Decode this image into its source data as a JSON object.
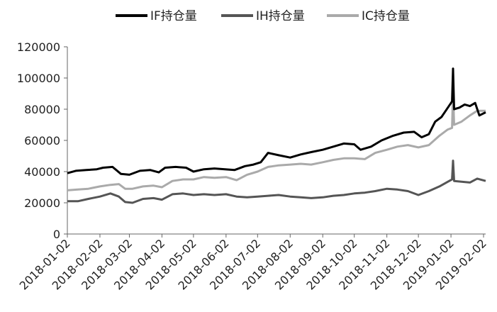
{
  "chart_data": {
    "type": "line",
    "title": "",
    "xlabel": "",
    "ylabel": "",
    "ylim": [
      0,
      120000
    ],
    "yticks": [
      0,
      20000,
      40000,
      60000,
      80000,
      100000,
      120000
    ],
    "ytick_labels": [
      "0",
      "20000",
      "40000",
      "60000",
      "80000",
      "100000",
      "120000"
    ],
    "xlim": [
      "2018-01-02",
      "2019-02-04"
    ],
    "xticks": [
      "2018-01-02",
      "2018-02-02",
      "2018-03-02",
      "2018-04-02",
      "2018-05-02",
      "2018-06-02",
      "2018-07-02",
      "2018-08-02",
      "2018-09-02",
      "2018-10-02",
      "2018-11-02",
      "2018-12-02",
      "2019-01-02",
      "2019-02-02"
    ],
    "grid": false,
    "legend_position": "top",
    "series": [
      {
        "name": "IF持仓量",
        "color": "#000000",
        "points": [
          [
            "2018-01-02",
            39000
          ],
          [
            "2018-01-10",
            40500
          ],
          [
            "2018-01-20",
            41000
          ],
          [
            "2018-01-30",
            41500
          ],
          [
            "2018-02-05",
            42500
          ],
          [
            "2018-02-14",
            43000
          ],
          [
            "2018-02-22",
            38500
          ],
          [
            "2018-03-02",
            38000
          ],
          [
            "2018-03-12",
            40500
          ],
          [
            "2018-03-22",
            41000
          ],
          [
            "2018-03-30",
            39500
          ],
          [
            "2018-04-05",
            42500
          ],
          [
            "2018-04-15",
            43000
          ],
          [
            "2018-04-25",
            42500
          ],
          [
            "2018-05-02",
            40000
          ],
          [
            "2018-05-12",
            41500
          ],
          [
            "2018-05-22",
            42000
          ],
          [
            "2018-06-01",
            41500
          ],
          [
            "2018-06-10",
            41000
          ],
          [
            "2018-06-20",
            43500
          ],
          [
            "2018-06-28",
            44500
          ],
          [
            "2018-07-05",
            46000
          ],
          [
            "2018-07-12",
            52000
          ],
          [
            "2018-07-22",
            50500
          ],
          [
            "2018-08-02",
            49000
          ],
          [
            "2018-08-12",
            51000
          ],
          [
            "2018-08-22",
            52500
          ],
          [
            "2018-09-02",
            54000
          ],
          [
            "2018-09-12",
            56000
          ],
          [
            "2018-09-22",
            58000
          ],
          [
            "2018-10-02",
            57500
          ],
          [
            "2018-10-08",
            54000
          ],
          [
            "2018-10-18",
            56000
          ],
          [
            "2018-10-28",
            60000
          ],
          [
            "2018-11-08",
            63000
          ],
          [
            "2018-11-18",
            65000
          ],
          [
            "2018-11-28",
            65500
          ],
          [
            "2018-12-05",
            62000
          ],
          [
            "2018-12-12",
            64000
          ],
          [
            "2018-12-18",
            72000
          ],
          [
            "2018-12-24",
            75000
          ],
          [
            "2018-12-28",
            79000
          ],
          [
            "2019-01-03",
            85000
          ],
          [
            "2019-01-04",
            106000
          ],
          [
            "2019-01-05",
            80000
          ],
          [
            "2019-01-10",
            81000
          ],
          [
            "2019-01-15",
            83000
          ],
          [
            "2019-01-20",
            82000
          ],
          [
            "2019-01-25",
            84000
          ],
          [
            "2019-01-29",
            76000
          ],
          [
            "2019-02-04",
            78000
          ]
        ]
      },
      {
        "name": "IH持仓量",
        "color": "#555555",
        "points": [
          [
            "2018-01-02",
            21000
          ],
          [
            "2018-01-12",
            21000
          ],
          [
            "2018-01-22",
            22500
          ],
          [
            "2018-02-02",
            24000
          ],
          [
            "2018-02-12",
            26000
          ],
          [
            "2018-02-20",
            24000
          ],
          [
            "2018-02-26",
            20500
          ],
          [
            "2018-03-05",
            20000
          ],
          [
            "2018-03-15",
            22500
          ],
          [
            "2018-03-25",
            23000
          ],
          [
            "2018-04-02",
            22000
          ],
          [
            "2018-04-12",
            25500
          ],
          [
            "2018-04-22",
            26000
          ],
          [
            "2018-05-02",
            25000
          ],
          [
            "2018-05-12",
            25500
          ],
          [
            "2018-05-22",
            25000
          ],
          [
            "2018-06-02",
            25500
          ],
          [
            "2018-06-12",
            24000
          ],
          [
            "2018-06-22",
            23500
          ],
          [
            "2018-07-02",
            24000
          ],
          [
            "2018-07-12",
            24500
          ],
          [
            "2018-07-22",
            25000
          ],
          [
            "2018-08-02",
            24000
          ],
          [
            "2018-08-12",
            23500
          ],
          [
            "2018-08-22",
            23000
          ],
          [
            "2018-09-02",
            23500
          ],
          [
            "2018-09-12",
            24500
          ],
          [
            "2018-09-22",
            25000
          ],
          [
            "2018-10-02",
            26000
          ],
          [
            "2018-10-12",
            26500
          ],
          [
            "2018-10-22",
            27500
          ],
          [
            "2018-11-02",
            29000
          ],
          [
            "2018-11-12",
            28500
          ],
          [
            "2018-11-22",
            27500
          ],
          [
            "2018-12-02",
            25000
          ],
          [
            "2018-12-12",
            27500
          ],
          [
            "2018-12-22",
            30500
          ],
          [
            "2018-12-30",
            33500
          ],
          [
            "2019-01-03",
            35000
          ],
          [
            "2019-01-04",
            47000
          ],
          [
            "2019-01-05",
            34000
          ],
          [
            "2019-01-12",
            33500
          ],
          [
            "2019-01-20",
            33000
          ],
          [
            "2019-01-27",
            35500
          ],
          [
            "2019-02-04",
            34000
          ]
        ]
      },
      {
        "name": "IC持仓量",
        "color": "#aaaaaa",
        "points": [
          [
            "2018-01-02",
            28000
          ],
          [
            "2018-01-12",
            28500
          ],
          [
            "2018-01-22",
            29000
          ],
          [
            "2018-02-02",
            30500
          ],
          [
            "2018-02-12",
            31500
          ],
          [
            "2018-02-20",
            32000
          ],
          [
            "2018-02-26",
            29000
          ],
          [
            "2018-03-05",
            29000
          ],
          [
            "2018-03-15",
            30500
          ],
          [
            "2018-03-25",
            31000
          ],
          [
            "2018-04-02",
            30000
          ],
          [
            "2018-04-12",
            34000
          ],
          [
            "2018-04-22",
            35000
          ],
          [
            "2018-05-02",
            35000
          ],
          [
            "2018-05-12",
            36500
          ],
          [
            "2018-05-22",
            36000
          ],
          [
            "2018-06-02",
            36500
          ],
          [
            "2018-06-12",
            34500
          ],
          [
            "2018-06-22",
            38000
          ],
          [
            "2018-07-02",
            40000
          ],
          [
            "2018-07-12",
            43000
          ],
          [
            "2018-07-22",
            44000
          ],
          [
            "2018-08-02",
            44500
          ],
          [
            "2018-08-12",
            45000
          ],
          [
            "2018-08-22",
            44500
          ],
          [
            "2018-09-02",
            46000
          ],
          [
            "2018-09-12",
            47500
          ],
          [
            "2018-09-22",
            48500
          ],
          [
            "2018-10-02",
            48500
          ],
          [
            "2018-10-12",
            48000
          ],
          [
            "2018-10-22",
            52000
          ],
          [
            "2018-11-02",
            54000
          ],
          [
            "2018-11-12",
            56000
          ],
          [
            "2018-11-22",
            57000
          ],
          [
            "2018-12-02",
            55500
          ],
          [
            "2018-12-12",
            57000
          ],
          [
            "2018-12-22",
            63000
          ],
          [
            "2018-12-30",
            67000
          ],
          [
            "2019-01-03",
            68000
          ],
          [
            "2019-01-04",
            91000
          ],
          [
            "2019-01-05",
            70000
          ],
          [
            "2019-01-12",
            72000
          ],
          [
            "2019-01-20",
            76000
          ],
          [
            "2019-01-27",
            79000
          ],
          [
            "2019-02-04",
            79000
          ]
        ]
      }
    ]
  }
}
